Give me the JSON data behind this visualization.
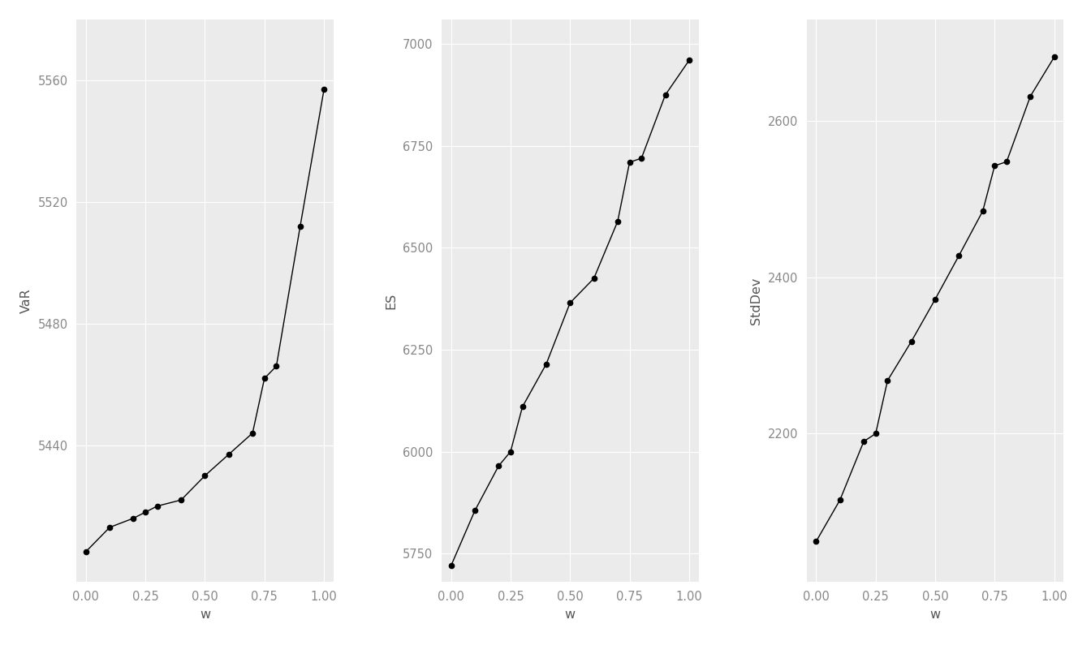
{
  "w": [
    0.0,
    0.1,
    0.2,
    0.25,
    0.3,
    0.4,
    0.5,
    0.6,
    0.7,
    0.75,
    0.8,
    0.9,
    1.0
  ],
  "VaR": [
    5405,
    5413,
    5416,
    5418,
    5420,
    5422,
    5430,
    5437,
    5444,
    5462,
    5466,
    5512,
    5557
  ],
  "ES": [
    5720,
    5855,
    5965,
    6000,
    6110,
    6215,
    6365,
    6425,
    6565,
    6710,
    6720,
    6875,
    6960
  ],
  "StdDev": [
    2062,
    2115,
    2190,
    2200,
    2268,
    2318,
    2372,
    2428,
    2485,
    2543,
    2548,
    2632,
    2682
  ],
  "xlabel": "w",
  "ylabel_1": "VaR",
  "ylabel_2": "ES",
  "ylabel_3": "StdDev",
  "bg_color": "#ffffff",
  "panel_bg": "#ebebeb",
  "grid_color": "#ffffff",
  "line_color": "#000000",
  "tick_color": "#888888",
  "axis_label_color": "#555555",
  "markersize": 4.5,
  "linewidth": 1.0,
  "VaR_yticks": [
    5440,
    5480,
    5520,
    5560
  ],
  "ES_yticks": [
    5750,
    6000,
    6250,
    6500,
    6750,
    7000
  ],
  "StdDev_yticks": [
    2200,
    2400,
    2600
  ],
  "xticks": [
    0.0,
    0.25,
    0.5,
    0.75,
    1.0
  ],
  "VaR_ylim": [
    5395,
    5580
  ],
  "ES_ylim": [
    5680,
    7060
  ],
  "StdDev_ylim": [
    2010,
    2730
  ]
}
